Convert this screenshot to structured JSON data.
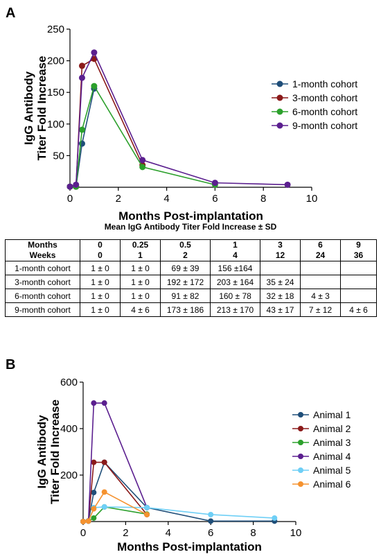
{
  "colors": {
    "c1": "#1f4e79",
    "c3": "#8b1a1a",
    "c6": "#2ca02c",
    "c9": "#5b1f8f",
    "a1": "#1f4e79",
    "a2": "#8b1a1a",
    "a3": "#2ca02c",
    "a4": "#5b1f8f",
    "a5": "#6ecff6",
    "a6": "#f5922f"
  },
  "panel_a": {
    "letter": "A"
  },
  "panel_b": {
    "letter": "B"
  },
  "chart_data": [
    {
      "type": "line",
      "ylabel_lines": [
        "IgG Antibody",
        "Titer Fold Increase"
      ],
      "xlabel": "Months Post-implantation",
      "xlim": [
        0,
        10
      ],
      "ylim": [
        0,
        250
      ],
      "xticks": [
        0,
        2,
        4,
        6,
        8,
        10
      ],
      "yticks": [
        50,
        100,
        150,
        200,
        250
      ],
      "legend_position": "right",
      "series": [
        {
          "name": "1-month cohort",
          "color_key": "c1",
          "x": [
            0,
            0.25,
            0.5,
            1
          ],
          "y": [
            1,
            1,
            69,
            156
          ]
        },
        {
          "name": "3-month cohort",
          "color_key": "c3",
          "x": [
            0,
            0.25,
            0.5,
            1,
            3
          ],
          "y": [
            1,
            1,
            192,
            203,
            35
          ]
        },
        {
          "name": "6-month cohort",
          "color_key": "c6",
          "x": [
            0,
            0.25,
            0.5,
            1,
            3,
            6
          ],
          "y": [
            1,
            1,
            91,
            160,
            32,
            4
          ]
        },
        {
          "name": "9-month cohort",
          "color_key": "c9",
          "x": [
            0,
            0.25,
            0.5,
            1,
            3,
            6,
            9
          ],
          "y": [
            1,
            4,
            173,
            213,
            43,
            7,
            4
          ]
        }
      ]
    },
    {
      "type": "line",
      "ylabel_lines": [
        "IgG Antibody",
        "Titer Fold Increase"
      ],
      "xlabel": "Months Post-implantation",
      "xlim": [
        0,
        10
      ],
      "ylim": [
        0,
        600
      ],
      "xticks": [
        0,
        2,
        4,
        6,
        8,
        10
      ],
      "yticks": [
        200,
        400,
        600
      ],
      "legend_position": "right",
      "series": [
        {
          "name": "Animal 1",
          "color_key": "a1",
          "x": [
            0,
            0.25,
            0.5,
            1,
            3,
            6,
            9
          ],
          "y": [
            0,
            3,
            125,
            255,
            60,
            2,
            2
          ]
        },
        {
          "name": "Animal 2",
          "color_key": "a2",
          "x": [
            0,
            0.25,
            0.5,
            1,
            3
          ],
          "y": [
            0,
            2,
            255,
            255,
            30
          ]
        },
        {
          "name": "Animal 3",
          "color_key": "a3",
          "x": [
            0,
            0.25,
            0.5,
            1,
            3
          ],
          "y": [
            0,
            2,
            15,
            63,
            32
          ]
        },
        {
          "name": "Animal 4",
          "color_key": "a4",
          "x": [
            0,
            0.25,
            0.5,
            1,
            3
          ],
          "y": [
            0,
            2,
            510,
            510,
            60
          ]
        },
        {
          "name": "Animal 5",
          "color_key": "a5",
          "x": [
            0,
            0.25,
            0.5,
            1,
            3,
            6,
            9
          ],
          "y": [
            0,
            2,
            60,
            63,
            60,
            30,
            15
          ]
        },
        {
          "name": "Animal 6",
          "color_key": "a6",
          "x": [
            0,
            0.25,
            0.5,
            1,
            3
          ],
          "y": [
            0,
            2,
            55,
            127,
            30
          ]
        }
      ]
    }
  ],
  "table": {
    "title": "Mean IgG Antibody Titer Fold Increase ± SD",
    "header_months": [
      "Months",
      "0",
      "0.25",
      "0.5",
      "1",
      "3",
      "6",
      "9"
    ],
    "header_weeks": [
      "Weeks",
      "0",
      "1",
      "2",
      "4",
      "12",
      "24",
      "36"
    ],
    "rows": [
      [
        "1-month cohort",
        "1 ± 0",
        "1 ± 0",
        "69 ± 39",
        "156 ±164",
        "",
        "",
        ""
      ],
      [
        "3-month cohort",
        "1 ± 0",
        "1 ± 0",
        "192 ± 172",
        "203 ± 164",
        "35 ± 24",
        "",
        ""
      ],
      [
        "6-month cohort",
        "1 ± 0",
        "1 ± 0",
        "91 ± 82",
        "160 ± 78",
        "32 ± 18",
        "4 ± 3",
        ""
      ],
      [
        "9-month cohort",
        "1 ± 0",
        "4 ± 6",
        "173 ± 186",
        "213 ± 170",
        "43 ± 17",
        "7 ± 12",
        "4 ± 6"
      ]
    ]
  }
}
